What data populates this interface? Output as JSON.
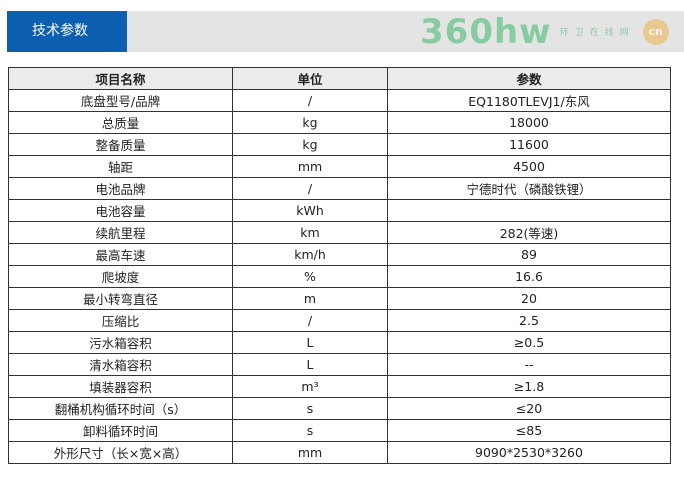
{
  "header": {
    "title": "技术参数",
    "accent": "#0b5fae"
  },
  "table": {
    "columns": [
      "项目名称",
      "单位",
      "参数"
    ],
    "rows": [
      [
        "底盘型号/品牌",
        "/",
        "EQ1180TLEVJ1/东风"
      ],
      [
        "总质量",
        "kg",
        "18000"
      ],
      [
        "整备质量",
        "kg",
        "11600"
      ],
      [
        "轴距",
        "mm",
        "4500"
      ],
      [
        "电池品牌",
        "/",
        "宁德时代（磷酸铁锂）"
      ],
      [
        "电池容量",
        "kWh",
        ""
      ],
      [
        "续航里程",
        "km",
        "282(等速)"
      ],
      [
        "最高车速",
        "km/h",
        "89"
      ],
      [
        "爬坡度",
        "%",
        "16.6"
      ],
      [
        "最小转弯直径",
        "m",
        "20"
      ],
      [
        "压缩比",
        "/",
        "2.5"
      ],
      [
        "污水箱容积",
        "L",
        "≥0.5"
      ],
      [
        "清水箱容积",
        "L",
        "--"
      ],
      [
        "填装器容积",
        "m³",
        "≥1.8"
      ],
      [
        "翻桶机构循环时间（s）",
        "s",
        "≤20"
      ],
      [
        "卸料循环时间",
        "s",
        "≤85"
      ],
      [
        "外形尺寸（长×宽×高）",
        "mm",
        "9090*2530*3260"
      ]
    ]
  },
  "watermark": {
    "logo": "360hw",
    "subtitle": "环卫在线网",
    "badge": "cn"
  }
}
